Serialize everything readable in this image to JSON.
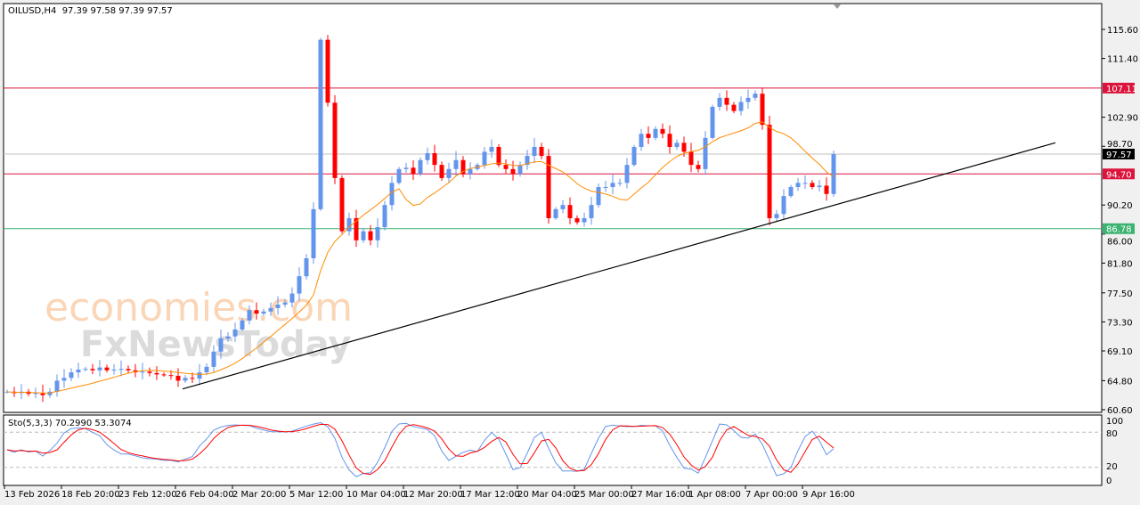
{
  "header": {
    "symbol": "OILUSD,H4",
    "ohlc": "97.39 97.58 97.39 97.57"
  },
  "stochastic": {
    "label": "Sto(5,3,3)",
    "values": "70.2990 53.3074",
    "levels": [
      "100",
      "80",
      "20",
      "0"
    ]
  },
  "watermark": {
    "brand1": "economies.com",
    "brand2": "FxNewsToday"
  },
  "colors": {
    "bull": "#6495ED",
    "bear": "#FF0000",
    "ma": "#FF8C00",
    "resistance": "#DC143C",
    "support": "#3CB371",
    "current": "#C0C0C0",
    "trend": "#000000",
    "sto_main": "#6495ED",
    "sto_signal": "#FF0000"
  },
  "chart_data": {
    "type": "candlestick",
    "title": "OILUSD,H4",
    "ylim": [
      60.6,
      115.6
    ],
    "y_ticks": [
      "115.60",
      "111.40",
      "102.90",
      "98.70",
      "90.20",
      "86.00",
      "81.80",
      "77.50",
      "73.30",
      "69.10",
      "64.80",
      "60.60"
    ],
    "x_ticks": [
      "13 Feb 2026",
      "18 Feb 20:00",
      "23 Feb 12:00",
      "26 Feb 04:00",
      "2 Mar 20:00",
      "5 Mar 12:00",
      "10 Mar 04:00",
      "12 Mar 20:00",
      "17 Mar 12:00",
      "20 Mar 04:00",
      "25 Mar 00:00",
      "27 Mar 16:00",
      "1 Apr 08:00",
      "7 Apr 00:00",
      "9 Apr 16:00"
    ],
    "closes": [
      63.2,
      63.0,
      63.2,
      62.9,
      63.0,
      62.7,
      63.2,
      64.8,
      65.2,
      66.0,
      66.4,
      66.5,
      66.3,
      66.7,
      66.3,
      66.4,
      66.5,
      66.3,
      66.0,
      66.1,
      65.9,
      65.7,
      65.6,
      65.5,
      64.8,
      65.2,
      65.1,
      66.0,
      66.8,
      69.0,
      70.9,
      71.2,
      72.2,
      73.5,
      75.0,
      74.5,
      74.8,
      75.3,
      75.8,
      76.1,
      77.4,
      79.9,
      82.5,
      89.6,
      114.1,
      105.0,
      94.1,
      86.4,
      88.3,
      85.1,
      86.4,
      85.1,
      87.0,
      90.2,
      93.4,
      95.4,
      95.6,
      94.7,
      96.7,
      97.7,
      96.0,
      94.1,
      95.4,
      96.7,
      94.7,
      95.4,
      96.0,
      97.9,
      98.6,
      96.0,
      95.4,
      94.7,
      96.0,
      97.3,
      98.6,
      97.3,
      88.3,
      89.6,
      90.2,
      88.3,
      87.7,
      88.3,
      90.2,
      92.8,
      92.8,
      93.4,
      93.4,
      96.0,
      98.6,
      100.5,
      99.9,
      101.2,
      100.5,
      98.6,
      99.2,
      97.9,
      96.0,
      95.4,
      99.9,
      104.4,
      105.7,
      104.7,
      103.8,
      105.1,
      105.7,
      106.3,
      101.8,
      88.3,
      88.9,
      91.5,
      92.8,
      93.4,
      93.4,
      92.8,
      93.0,
      91.8,
      97.57
    ],
    "horizontal_lines": [
      {
        "price": 107.11,
        "label": "107.11",
        "role": "resistance"
      },
      {
        "price": 94.7,
        "label": "94.70",
        "role": "resistance"
      },
      {
        "price": 86.78,
        "label": "86.78",
        "role": "support"
      },
      {
        "price": 97.57,
        "label": "97.57",
        "role": "current"
      }
    ],
    "trendline": {
      "from_price": 63.6,
      "to_price": 99.2
    },
    "grid": false
  }
}
